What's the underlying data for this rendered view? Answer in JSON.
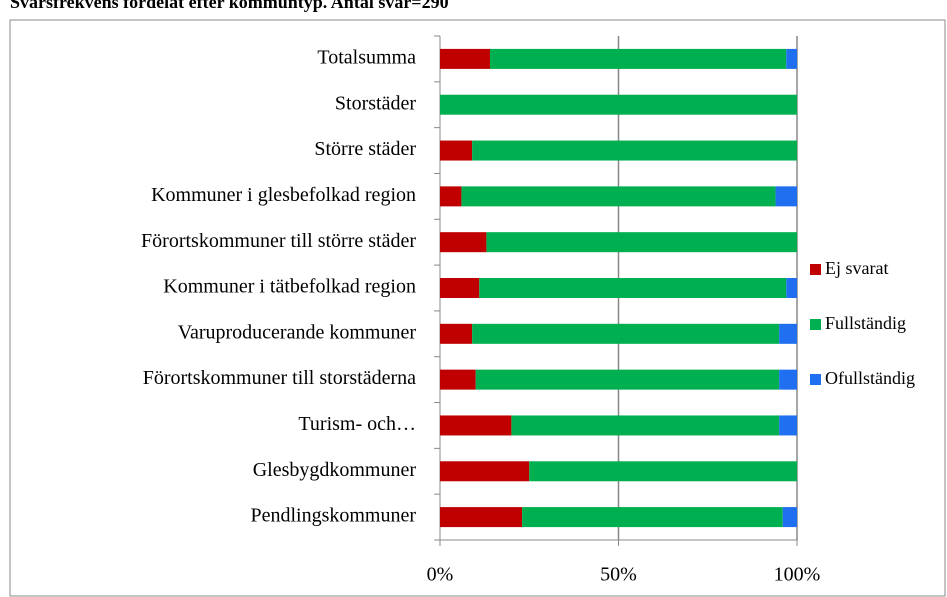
{
  "chart_data": {
    "type": "bar_stacked_horizontal",
    "title": "Svarsfrekvens fördelat efter kommuntyp. Antal svar=290",
    "categories": [
      "Totalsumma",
      "Storstäder",
      "Större städer",
      "Kommuner i glesbefolkad region",
      "Förortskommuner till större städer",
      "Kommuner i tätbefolkad region",
      "Varuproducerande kommuner",
      "Förortskommuner till storstäderna",
      "Turism- och…",
      "Glesbygdkommuner",
      "Pendlingskommuner"
    ],
    "series": [
      {
        "name": "Ej svarat",
        "color": "#c00000",
        "values": [
          14,
          0,
          9,
          6,
          13,
          11,
          9,
          10,
          20,
          25,
          23
        ]
      },
      {
        "name": "Fullständig",
        "color": "#00b050",
        "values": [
          83,
          100,
          91,
          88,
          87,
          86,
          86,
          85,
          75,
          75,
          73
        ]
      },
      {
        "name": "Ofullständig",
        "color": "#1f6ff0",
        "values": [
          3,
          0,
          0,
          6,
          0,
          3,
          5,
          5,
          5,
          0,
          4
        ]
      }
    ],
    "xlim": [
      0,
      100
    ],
    "xticks": [
      {
        "value": 0,
        "label": "0%"
      },
      {
        "value": 50,
        "label": "50%"
      },
      {
        "value": 100,
        "label": "100%"
      }
    ],
    "grid": true,
    "legend": "right"
  }
}
